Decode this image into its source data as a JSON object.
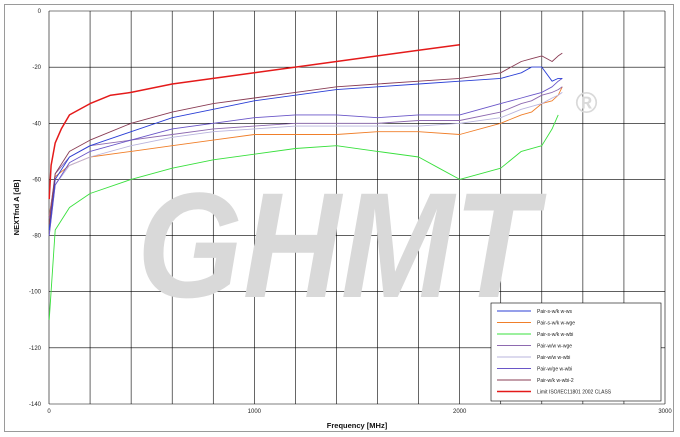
{
  "watermark": {
    "text": "GHMT",
    "mark": "®"
  },
  "chart_data": {
    "type": "line",
    "xlabel": "Frequency [MHz]",
    "ylabel": "NEXTfnd A [dB]",
    "xlim": [
      0,
      3000
    ],
    "ylim": [
      -140,
      0
    ],
    "xticks": [
      0,
      1000,
      2000,
      3000
    ],
    "yticks": [
      0,
      -20,
      -40,
      -60,
      -80,
      -100,
      -120,
      -140
    ],
    "grid": true,
    "legend_position": "bottom-right",
    "series": [
      {
        "name": "Pair-s-w/k w-ws",
        "color": "#2b3fd6",
        "x": [
          1,
          30,
          100,
          200,
          400,
          600,
          800,
          1000,
          1200,
          1400,
          1600,
          1800,
          2000,
          2200,
          2300,
          2350,
          2400,
          2450,
          2480,
          2500
        ],
        "y": [
          -78,
          -60,
          -52,
          -48,
          -43,
          -38,
          -35,
          -32,
          -30,
          -28,
          -27,
          -26,
          -25,
          -24,
          -22,
          -20,
          -20,
          -25,
          -24,
          -24
        ]
      },
      {
        "name": "Pair-s-w/k w-wge",
        "color": "#f07f2a",
        "x": [
          1,
          30,
          100,
          200,
          400,
          600,
          800,
          1000,
          1200,
          1400,
          1600,
          1800,
          2000,
          2200,
          2300,
          2350,
          2400,
          2450,
          2480,
          2500
        ],
        "y": [
          -73,
          -59,
          -55,
          -52,
          -50,
          -48,
          -46,
          -44,
          -44,
          -44,
          -43,
          -43,
          -44,
          -40,
          -37,
          -36,
          -33,
          -32,
          -30,
          -27
        ]
      },
      {
        "name": "Pair-s-w/k w-wbi",
        "color": "#39e03d",
        "x": [
          1,
          30,
          100,
          200,
          400,
          600,
          800,
          1000,
          1200,
          1400,
          1600,
          1800,
          1900,
          2000,
          2100,
          2200,
          2300,
          2400,
          2450,
          2480
        ],
        "y": [
          -110,
          -78,
          -70,
          -65,
          -60,
          -56,
          -53,
          -51,
          -49,
          -48,
          -50,
          -52,
          -56,
          -60,
          -58,
          -56,
          -50,
          -48,
          -42,
          -37
        ]
      },
      {
        "name": "Pair-w/w w-wge",
        "color": "#8e6ab0",
        "x": [
          1,
          30,
          100,
          200,
          400,
          600,
          800,
          1000,
          1200,
          1400,
          1600,
          1800,
          2000,
          2200,
          2300,
          2350,
          2400,
          2450,
          2480,
          2500
        ],
        "y": [
          -74,
          -58,
          -52,
          -48,
          -46,
          -44,
          -42,
          -41,
          -40,
          -40,
          -40,
          -39,
          -39,
          -36,
          -33,
          -32,
          -30,
          -29,
          -28,
          -27
        ]
      },
      {
        "name": "Pair-w/w w-wbi",
        "color": "#b9b4de",
        "x": [
          1,
          30,
          100,
          200,
          400,
          600,
          800,
          1000,
          1200,
          1400,
          1600,
          1800,
          2000,
          2200,
          2300,
          2350,
          2400,
          2450,
          2480,
          2500
        ],
        "y": [
          -80,
          -62,
          -55,
          -52,
          -48,
          -45,
          -43,
          -42,
          -41,
          -41,
          -41,
          -41,
          -40,
          -38,
          -35,
          -34,
          -33,
          -31,
          -30,
          -29
        ]
      },
      {
        "name": "Pair-w/ge w-wbi",
        "color": "#6a56c8",
        "x": [
          1,
          30,
          100,
          200,
          400,
          600,
          800,
          1000,
          1200,
          1400,
          1600,
          1800,
          2000,
          2200,
          2300,
          2350,
          2400,
          2450,
          2480,
          2500
        ],
        "y": [
          -80,
          -62,
          -54,
          -50,
          -46,
          -42,
          -40,
          -38,
          -37,
          -37,
          -38,
          -37,
          -37,
          -33,
          -31,
          -30,
          -29,
          -27,
          -25,
          -24
        ]
      },
      {
        "name": "Pair-w/k w-wbi-2",
        "color": "#8a3d55",
        "x": [
          1,
          30,
          100,
          200,
          400,
          600,
          800,
          1000,
          1200,
          1400,
          1600,
          1800,
          2000,
          2200,
          2300,
          2350,
          2400,
          2450,
          2480,
          2500
        ],
        "y": [
          -76,
          -58,
          -50,
          -46,
          -40,
          -36,
          -33,
          -31,
          -29,
          -27,
          -26,
          -25,
          -24,
          -22,
          -18,
          -17,
          -16,
          -18,
          -16,
          -15
        ]
      },
      {
        "name": "Limit ISO/IEC11801 2002 CLASS",
        "color": "#e41a1a",
        "x": [
          1,
          10,
          30,
          60,
          100,
          200,
          300,
          400,
          600,
          800,
          1000,
          1200,
          1400,
          1600,
          1800,
          2000
        ],
        "y": [
          -67,
          -55,
          -47,
          -42,
          -37,
          -33,
          -30,
          -29,
          -26,
          -24,
          -22,
          -20,
          -18,
          -16,
          -14,
          -12
        ]
      }
    ]
  }
}
